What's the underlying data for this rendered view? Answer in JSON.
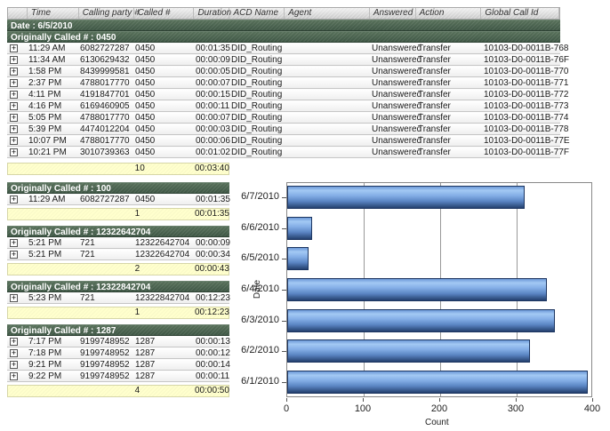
{
  "columns": [
    "",
    "Time",
    "Calling party #",
    "Called #",
    "Duration",
    "ACD Name",
    "Agent",
    "Answered",
    "Action",
    "Global Call Id"
  ],
  "date_header": "Date : 6/5/2010",
  "groups": [
    {
      "header": "Originally Called # : 0450",
      "full": true,
      "rows": [
        [
          "11:29 AM",
          "6082727287",
          "0450",
          "00:01:35",
          "DID_Routing",
          "",
          "Unanswered",
          "Transfer",
          "10103-D0-0011B-768"
        ],
        [
          "11:34 AM",
          "6130629432",
          "0450",
          "00:00:09",
          "DID_Routing",
          "",
          "Unanswered",
          "Transfer",
          "10103-D0-0011B-76F"
        ],
        [
          "1:58 PM",
          "8439999581",
          "0450",
          "00:00:05",
          "DID_Routing",
          "",
          "Unanswered",
          "Transfer",
          "10103-D0-0011B-770"
        ],
        [
          "2:37 PM",
          "4788017770",
          "0450",
          "00:00:07",
          "DID_Routing",
          "",
          "Unanswered",
          "Transfer",
          "10103-D0-0011B-771"
        ],
        [
          "4:11 PM",
          "4191847701",
          "0450",
          "00:00:15",
          "DID_Routing",
          "",
          "Unanswered",
          "Transfer",
          "10103-D0-0011B-772"
        ],
        [
          "4:16 PM",
          "6169460905",
          "0450",
          "00:00:11",
          "DID_Routing",
          "",
          "Unanswered",
          "Transfer",
          "10103-D0-0011B-773"
        ],
        [
          "5:05 PM",
          "4788017770",
          "0450",
          "00:00:07",
          "DID_Routing",
          "",
          "Unanswered",
          "Transfer",
          "10103-D0-0011B-774"
        ],
        [
          "5:39 PM",
          "4474012204",
          "0450",
          "00:00:03",
          "DID_Routing",
          "",
          "Unanswered",
          "Transfer",
          "10103-D0-0011B-778"
        ],
        [
          "10:07 PM",
          "4788017770",
          "0450",
          "00:00:06",
          "DID_Routing",
          "",
          "Unanswered",
          "Transfer",
          "10103-D0-0011B-77E"
        ],
        [
          "10:21 PM",
          "3010739363",
          "0450",
          "00:01:02",
          "DID_Routing",
          "",
          "Unanswered",
          "Transfer",
          "10103-D0-0011B-77F"
        ]
      ],
      "summary": {
        "count": "10",
        "total": "00:03:40"
      }
    },
    {
      "header": "Originally Called # : 100",
      "full": false,
      "rows": [
        [
          "11:29 AM",
          "6082727287",
          "0450",
          "00:01:35"
        ]
      ],
      "summary": {
        "count": "1",
        "total": "00:01:35"
      }
    },
    {
      "header": "Originally Called # : 12322642704",
      "full": false,
      "rows": [
        [
          "5:21 PM",
          "721",
          "12322642704",
          "00:00:09"
        ],
        [
          "5:21 PM",
          "721",
          "12322642704",
          "00:00:34"
        ]
      ],
      "summary": {
        "count": "2",
        "total": "00:00:43"
      }
    },
    {
      "header": "Originally Called # : 12322842704",
      "full": false,
      "rows": [
        [
          "5:23 PM",
          "721",
          "12322842704",
          "00:12:23"
        ]
      ],
      "summary": {
        "count": "1",
        "total": "00:12:23"
      }
    },
    {
      "header": "Originally Called # : 1287",
      "full": false,
      "rows": [
        [
          "7:17 PM",
          "9199748952",
          "1287",
          "00:00:13"
        ],
        [
          "7:18 PM",
          "9199748952",
          "1287",
          "00:00:12"
        ],
        [
          "9:21 PM",
          "9199748952",
          "1287",
          "00:00:14"
        ],
        [
          "9:22 PM",
          "9199748952",
          "1287",
          "00:00:11"
        ]
      ],
      "summary": {
        "count": "4",
        "total": "00:00:50"
      }
    }
  ],
  "expand_icon": "+",
  "chart_data": {
    "type": "bar",
    "orientation": "horizontal",
    "categories": [
      "6/7/2010",
      "6/6/2010",
      "6/5/2010",
      "6/4/2010",
      "6/3/2010",
      "6/2/2010",
      "6/1/2010"
    ],
    "values": [
      310,
      33,
      28,
      340,
      350,
      318,
      393
    ],
    "xlabel": "Count",
    "ylabel": "Date",
    "xlim": [
      0,
      400
    ],
    "xticks": [
      0,
      100,
      200,
      300,
      400
    ],
    "grid": true,
    "legend": "none",
    "bar_color": "#6f9fe0"
  },
  "colors": {
    "group_header_green": "#4a6150",
    "column_header_gray": "#d6d6d6",
    "summary_yellow": "#ffffcd",
    "bar_border_blue": "#1c3560",
    "grid_gray": "#999999"
  }
}
